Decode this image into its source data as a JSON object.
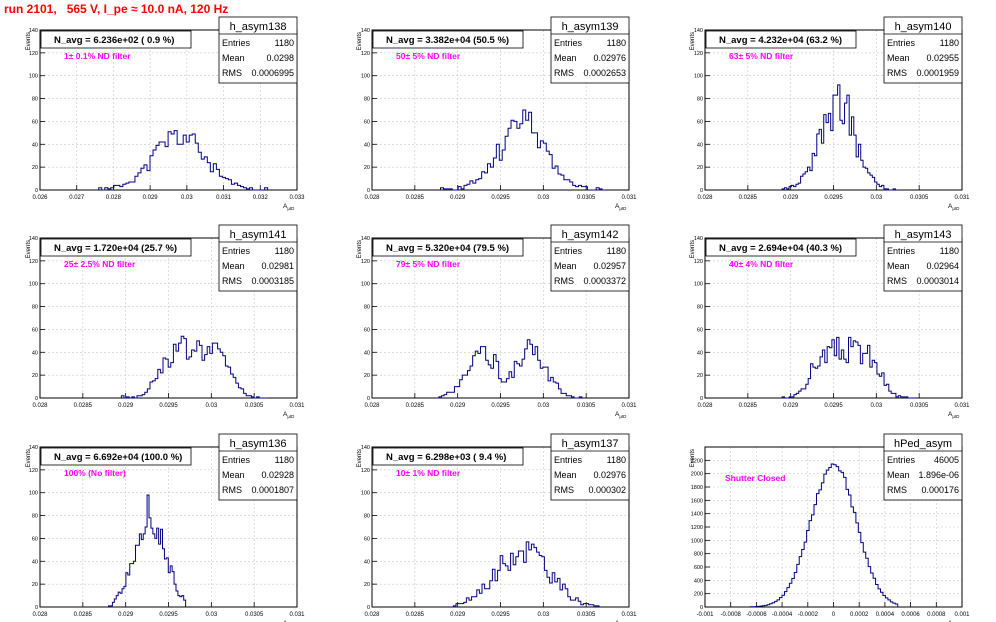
{
  "page": {
    "title": "run 2101,   565 V, I_pe ≈ 10.0 nA, 120 Hz",
    "title_color": "#ff0000"
  },
  "colors": {
    "histogram": "#000080",
    "annotation": "#ff00ff",
    "grid": "#c8c8c8",
    "frame": "#000000"
  },
  "common": {
    "y_axis_label": "Events",
    "x_axis_label": "A",
    "x_axis_label_sub": "μID",
    "stat_labels": [
      "Entries",
      "Mean",
      "RMS"
    ]
  },
  "chart_data": [
    {
      "id": "h_asym138",
      "type": "histogram",
      "title": "h_asym138",
      "navg": "N_avg = 6.236e+02 ( 0.9 %)",
      "filter": "1± 0.1% ND filter",
      "stats": {
        "entries": "1180",
        "mean": "0.0298",
        "rms": "0.0006995"
      },
      "xlim": [
        0.026,
        0.033
      ],
      "ylim": [
        0,
        140
      ],
      "xticks": [
        0.026,
        0.027,
        0.028,
        0.029,
        0.03,
        0.031,
        0.032,
        0.033
      ],
      "xticklabels": [
        "0.026",
        "0.027",
        "0.028",
        "0.029",
        "0.03",
        "0.031",
        "0.032",
        "0.033"
      ],
      "yticks": [
        0,
        20,
        40,
        60,
        80,
        100,
        120,
        140
      ],
      "curve": {
        "mean": 0.0298,
        "sigma": 0.0007,
        "peak": 47,
        "start": 0.0276,
        "end": 0.0322,
        "bins": 56,
        "seed": 11
      }
    },
    {
      "id": "h_asym139",
      "type": "histogram",
      "title": "h_asym139",
      "navg": "N_avg = 3.382e+04 (50.5 %)",
      "filter": "50± 5% ND filter",
      "stats": {
        "entries": "1180",
        "mean": "0.02976",
        "rms": "0.0002653"
      },
      "xlim": [
        0.028,
        0.031
      ],
      "ylim": [
        0,
        140
      ],
      "xticks": [
        0.028,
        0.0285,
        0.029,
        0.0295,
        0.03,
        0.0305,
        0.031
      ],
      "xticklabels": [
        "0.028",
        "0.0285",
        "0.029",
        "0.0295",
        "0.03",
        "0.0305",
        "0.031"
      ],
      "yticks": [
        0,
        20,
        40,
        60,
        80,
        100,
        120,
        140
      ],
      "curve": {
        "mean": 0.02976,
        "sigma": 0.00027,
        "peak": 58,
        "start": 0.0288,
        "end": 0.03072,
        "bins": 56,
        "seed": 23
      }
    },
    {
      "id": "h_asym140",
      "type": "histogram",
      "title": "h_asym140",
      "navg": "N_avg = 4.232e+04 (63.2 %)",
      "filter": "63± 5% ND filter",
      "stats": {
        "entries": "1180",
        "mean": "0.02955",
        "rms": "0.0001959"
      },
      "xlim": [
        0.028,
        0.031
      ],
      "ylim": [
        0,
        140
      ],
      "xticks": [
        0.028,
        0.0285,
        0.029,
        0.0295,
        0.03,
        0.0305,
        0.031
      ],
      "xticklabels": [
        "0.028",
        "0.0285",
        "0.029",
        "0.0295",
        "0.03",
        "0.0305",
        "0.031"
      ],
      "yticks": [
        0,
        20,
        40,
        60,
        80,
        100,
        120,
        140
      ],
      "curve": {
        "mean": 0.02955,
        "sigma": 0.0002,
        "peak": 76,
        "start": 0.0289,
        "end": 0.03025,
        "bins": 50,
        "seed": 37
      }
    },
    {
      "id": "h_asym141",
      "type": "histogram",
      "title": "h_asym141",
      "navg": "N_avg = 1.720e+04 (25.7 %)",
      "filter": "25± 2.5% ND filter",
      "stats": {
        "entries": "1180",
        "mean": "0.02981",
        "rms": "0.0003185"
      },
      "xlim": [
        0.028,
        0.031
      ],
      "ylim": [
        0,
        140
      ],
      "xticks": [
        0.028,
        0.0285,
        0.029,
        0.0295,
        0.03,
        0.0305,
        0.031
      ],
      "xticklabels": [
        "0.028",
        "0.0285",
        "0.029",
        "0.0295",
        "0.03",
        "0.0305",
        "0.031"
      ],
      "yticks": [
        0,
        20,
        40,
        60,
        80,
        100,
        120,
        140
      ],
      "curve": {
        "mean": 0.02981,
        "sigma": 0.00032,
        "peak": 42,
        "start": 0.02895,
        "end": 0.03065,
        "bins": 56,
        "seed": 41,
        "flat": true
      }
    },
    {
      "id": "h_asym142",
      "type": "histogram",
      "title": "h_asym142",
      "navg": "N_avg = 5.320e+04 (79.5 %)",
      "filter": "79± 5% ND filter",
      "stats": {
        "entries": "1180",
        "mean": "0.02957",
        "rms": "0.0003372"
      },
      "xlim": [
        0.028,
        0.031
      ],
      "ylim": [
        0,
        140
      ],
      "xticks": [
        0.028,
        0.0285,
        0.029,
        0.0295,
        0.03,
        0.0305,
        0.031
      ],
      "xticklabels": [
        "0.028",
        "0.0285",
        "0.029",
        "0.0295",
        "0.03",
        "0.0305",
        "0.031"
      ],
      "yticks": [
        0,
        20,
        40,
        60,
        80,
        100,
        120,
        140
      ],
      "curve": {
        "mean": 0.02957,
        "sigma": 0.00034,
        "peak": 40,
        "start": 0.02875,
        "end": 0.03045,
        "bins": 56,
        "seed": 53,
        "bimodal": true
      }
    },
    {
      "id": "h_asym143",
      "type": "histogram",
      "title": "h_asym143",
      "navg": "N_avg = 2.694e+04 (40.3 %)",
      "filter": "40± 4% ND filter",
      "stats": {
        "entries": "1180",
        "mean": "0.02964",
        "rms": "0.0003014"
      },
      "xlim": [
        0.028,
        0.031
      ],
      "ylim": [
        0,
        140
      ],
      "xticks": [
        0.028,
        0.0285,
        0.029,
        0.0295,
        0.03,
        0.0305,
        0.031
      ],
      "xticklabels": [
        "0.028",
        "0.0285",
        "0.029",
        "0.0295",
        "0.03",
        "0.0305",
        "0.031"
      ],
      "yticks": [
        0,
        20,
        40,
        60,
        80,
        100,
        120,
        140
      ],
      "curve": {
        "mean": 0.02964,
        "sigma": 0.0003,
        "peak": 42,
        "start": 0.0289,
        "end": 0.03045,
        "bins": 56,
        "seed": 67,
        "flat": true
      }
    },
    {
      "id": "h_asym136",
      "type": "histogram",
      "title": "h_asym136",
      "navg": "N_avg = 6.692e+04 (100.0 %)",
      "filter": "100% (No filter)",
      "stats": {
        "entries": "1180",
        "mean": "0.02928",
        "rms": "0.0001807"
      },
      "xlim": [
        0.028,
        0.031
      ],
      "ylim": [
        0,
        140
      ],
      "xticks": [
        0.028,
        0.0285,
        0.029,
        0.0295,
        0.03,
        0.0305,
        0.031
      ],
      "xticklabels": [
        "0.028",
        "0.0285",
        "0.029",
        "0.0295",
        "0.03",
        "0.0305",
        "0.031"
      ],
      "yticks": [
        0,
        20,
        40,
        60,
        80,
        100,
        120,
        140
      ],
      "curve": {
        "mean": 0.02928,
        "sigma": 0.00018,
        "peak": 78,
        "start": 0.0288,
        "end": 0.0297,
        "bins": 40,
        "seed": 71
      }
    },
    {
      "id": "h_asym137",
      "type": "histogram",
      "title": "h_asym137",
      "navg": "N_avg = 6.298e+03 ( 9.4 %)",
      "filter": "10± 1% ND filter",
      "stats": {
        "entries": "1180",
        "mean": "0.02976",
        "rms": "0.000302"
      },
      "xlim": [
        0.028,
        0.031
      ],
      "ylim": [
        0,
        140
      ],
      "xticks": [
        0.028,
        0.0285,
        0.029,
        0.0295,
        0.03,
        0.0305,
        0.031
      ],
      "xticklabels": [
        "0.028",
        "0.0285",
        "0.029",
        "0.0295",
        "0.03",
        "0.0305",
        "0.031"
      ],
      "yticks": [
        0,
        20,
        40,
        60,
        80,
        100,
        120,
        140
      ],
      "curve": {
        "mean": 0.02976,
        "sigma": 0.00031,
        "peak": 50,
        "start": 0.02895,
        "end": 0.03065,
        "bins": 56,
        "seed": 83
      }
    },
    {
      "id": "hPed_asym",
      "type": "histogram",
      "title": "hPed_asym",
      "navg": "",
      "filter": "Shutter Closed",
      "stats": {
        "entries": "46005",
        "mean": "1.896e-06",
        "rms": "0.000176"
      },
      "xlim": [
        -0.001,
        0.001
      ],
      "ylim": [
        0,
        2400
      ],
      "xticks": [
        -0.001,
        -0.0008,
        -0.0006,
        -0.0004,
        -0.0002,
        0,
        0.0002,
        0.0004,
        0.0006,
        0.0008,
        0.001
      ],
      "xticklabels": [
        "-0.001",
        "-0.0008",
        "-0.0006",
        "-0.0004",
        "-0.0002",
        "0",
        "0.0002",
        "0.0004",
        "0.0006",
        "0.0008",
        "0.001"
      ],
      "yticks": [
        0,
        200,
        400,
        600,
        800,
        1000,
        1200,
        1400,
        1600,
        1800,
        2000,
        2200
      ],
      "curve": {
        "mean": 0.0,
        "sigma": 0.000176,
        "peak": 2150,
        "start": -0.00065,
        "end": 0.0005,
        "bins": 60,
        "seed": 97,
        "smooth": true
      }
    }
  ]
}
